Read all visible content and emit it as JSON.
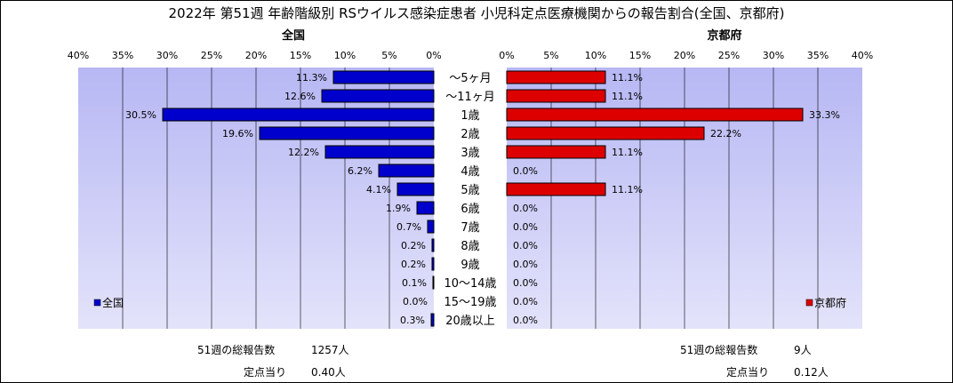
{
  "title": "2022年 第51週 年齢階級別 RSウイルス感染症患者 小児科定点医療機関からの報告割合(全国、京都府)",
  "chart_data": [
    {
      "type": "bar",
      "orientation": "horizontal",
      "direction": "leftward",
      "subtitle": "全国",
      "categories": [
        "～5ヶ月",
        "～11ヶ月",
        "1歳",
        "2歳",
        "3歳",
        "4歳",
        "5歳",
        "6歳",
        "7歳",
        "8歳",
        "9歳",
        "10～14歳",
        "15～19歳",
        "20歳以上"
      ],
      "series": [
        {
          "name": "全国",
          "color": "#0000cc",
          "values": [
            11.3,
            12.6,
            30.5,
            19.6,
            12.2,
            6.2,
            4.1,
            1.9,
            0.7,
            0.2,
            0.2,
            0.1,
            0.0,
            0.3
          ],
          "labels": [
            "11.3%",
            "12.6%",
            "30.5%",
            "19.6%",
            "12.2%",
            "6.2%",
            "4.1%",
            "1.9%",
            "0.7%",
            "0.2%",
            "0.2%",
            "0.1%",
            "0.0%",
            "0.3%"
          ]
        }
      ],
      "xlim": [
        0,
        40
      ],
      "xticks": [
        "0%",
        "5%",
        "10%",
        "15%",
        "20%",
        "25%",
        "30%",
        "35%",
        "40%"
      ],
      "grid": true,
      "legend_position": "bottom-left"
    },
    {
      "type": "bar",
      "orientation": "horizontal",
      "direction": "rightward",
      "subtitle": "京都府",
      "categories": [
        "～5ヶ月",
        "～11ヶ月",
        "1歳",
        "2歳",
        "3歳",
        "4歳",
        "5歳",
        "6歳",
        "7歳",
        "8歳",
        "9歳",
        "10～14歳",
        "15～19歳",
        "20歳以上"
      ],
      "series": [
        {
          "name": "京都府",
          "color": "#dd0000",
          "values": [
            11.1,
            11.1,
            33.3,
            22.2,
            11.1,
            0.0,
            11.1,
            0.0,
            0.0,
            0.0,
            0.0,
            0.0,
            0.0,
            0.0
          ],
          "labels": [
            "11.1%",
            "11.1%",
            "33.3%",
            "22.2%",
            "11.1%",
            "0.0%",
            "11.1%",
            "0.0%",
            "0.0%",
            "0.0%",
            "0.0%",
            "0.0%",
            "0.0%",
            "0.0%"
          ]
        }
      ],
      "xlim": [
        0,
        40
      ],
      "xticks": [
        "0%",
        "5%",
        "10%",
        "15%",
        "20%",
        "25%",
        "30%",
        "35%",
        "40%"
      ],
      "grid": true,
      "legend_position": "bottom-right"
    }
  ],
  "stats": {
    "left": {
      "reports_label": "51週の総報告数",
      "reports_value": "1257人",
      "per_site_label": "定点当り",
      "per_site_value": "0.40人"
    },
    "right": {
      "reports_label": "51週の総報告数",
      "reports_value": "9人",
      "per_site_label": "定点当り",
      "per_site_value": "0.12人"
    }
  },
  "colors": {
    "plot_top": "#b7b7f4",
    "plot_bottom": "#e3e3fb"
  }
}
